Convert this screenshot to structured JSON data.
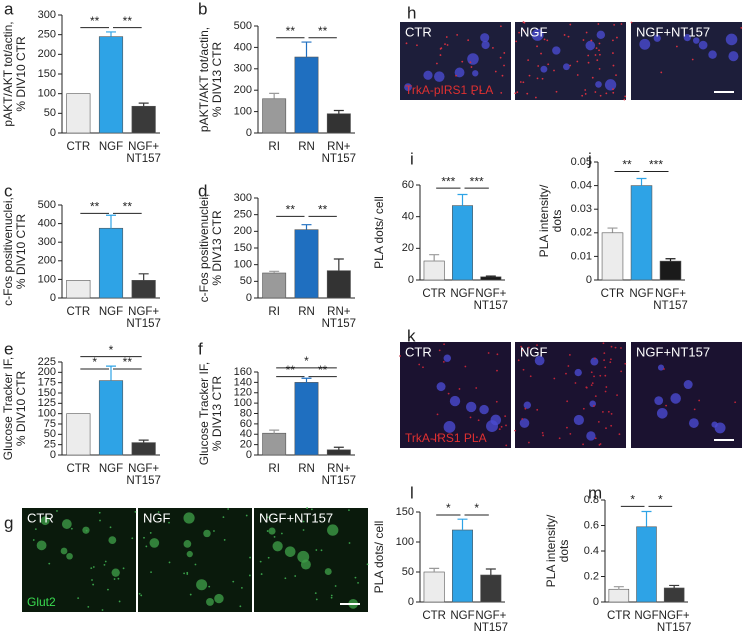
{
  "chart_data": [
    {
      "type": "bar",
      "letter": "a",
      "ylabel": "pAKT/AKT tot/actin,\n% DIV10 CTR",
      "categories": [
        "CTR",
        "NGF",
        "NGF+\nNT157"
      ],
      "values": [
        100,
        245,
        68
      ],
      "errors": [
        null,
        12,
        8
      ],
      "colors": [
        "#ececec",
        "#2ea3e6",
        "#3a3a3a"
      ],
      "ylim": [
        0,
        300
      ],
      "yticks": [
        0,
        50,
        100,
        150,
        200,
        250,
        300
      ],
      "annotations": [
        {
          "from": 0,
          "to": 1,
          "y": 268,
          "label": "**"
        },
        {
          "from": 1,
          "to": 2,
          "y": 268,
          "label": "**"
        }
      ]
    },
    {
      "type": "bar",
      "letter": "b",
      "ylabel": "pAKT/AKT tot/actin,\n% DIV13 CTR",
      "categories": [
        "RI",
        "RN",
        "RN+\nNT157"
      ],
      "values": [
        160,
        355,
        90
      ],
      "errors": [
        25,
        70,
        15
      ],
      "colors": [
        "#9a9a9a",
        "#1f6fc0",
        "#333333"
      ],
      "ylim": [
        0,
        500
      ],
      "yticks": [
        0,
        100,
        200,
        300,
        400,
        500
      ],
      "annotations": [
        {
          "from": 0,
          "to": 1,
          "y": 445,
          "label": "**"
        },
        {
          "from": 1,
          "to": 2,
          "y": 445,
          "label": "**"
        }
      ]
    },
    {
      "type": "bar",
      "letter": "c",
      "ylabel": "c-Fos positivenuclei,\n% DIV10 CTR",
      "categories": [
        "CTR",
        "NGF",
        "NGF+\nNT157"
      ],
      "values": [
        95,
        375,
        95
      ],
      "errors": [
        null,
        70,
        35
      ],
      "colors": [
        "#ececec",
        "#2ea3e6",
        "#3a3a3a"
      ],
      "ylim": [
        0,
        500
      ],
      "yticks": [
        0,
        100,
        200,
        300,
        400,
        500
      ],
      "annotations": [
        {
          "from": 0,
          "to": 1,
          "y": 455,
          "label": "**"
        },
        {
          "from": 1,
          "to": 2,
          "y": 455,
          "label": "**"
        }
      ]
    },
    {
      "type": "bar",
      "letter": "d",
      "ylabel": "c-Fos positivenuclei,\n% DIV13 CTR",
      "categories": [
        "RI",
        "RN",
        "RN+\nNT157"
      ],
      "values": [
        75,
        205,
        82
      ],
      "errors": [
        5,
        15,
        35
      ],
      "colors": [
        "#9a9a9a",
        "#1f6fc0",
        "#333333"
      ],
      "ylim": [
        0,
        300
      ],
      "yticks": [
        0,
        50,
        100,
        150,
        200,
        250,
        300
      ],
      "annotations": [
        {
          "from": 0,
          "to": 1,
          "y": 245,
          "label": "**"
        },
        {
          "from": 1,
          "to": 2,
          "y": 245,
          "label": "**"
        }
      ]
    },
    {
      "type": "bar",
      "letter": "e",
      "ylabel": "Glucose Tracker IF,\n% DIV10 CTR",
      "categories": [
        "CTR",
        "NGF",
        "NGF+\nNT157"
      ],
      "values": [
        100,
        180,
        30
      ],
      "errors": [
        null,
        35,
        6
      ],
      "colors": [
        "#ececec",
        "#2ea3e6",
        "#3a3a3a"
      ],
      "ylim": [
        0,
        225
      ],
      "yticks": [
        0,
        25,
        50,
        75,
        100,
        125,
        150,
        175,
        200,
        225
      ],
      "annotations": [
        {
          "from": 0,
          "to": 1,
          "y": 208,
          "label": "*"
        },
        {
          "from": 1,
          "to": 2,
          "y": 208,
          "label": "**"
        },
        {
          "from": 0,
          "to": 2,
          "y": 238,
          "label": "*"
        }
      ]
    },
    {
      "type": "bar",
      "letter": "f",
      "ylabel": "Glucose Tracker IF,\n% DIV13 CTR",
      "categories": [
        "RI",
        "RN",
        "RN+\nNT157"
      ],
      "values": [
        42,
        140,
        10
      ],
      "errors": [
        6,
        8,
        5
      ],
      "colors": [
        "#9a9a9a",
        "#1f6fc0",
        "#333333"
      ],
      "ylim": [
        0,
        160
      ],
      "yticks": [
        0,
        20,
        40,
        60,
        80,
        100,
        120,
        140,
        160
      ],
      "annotations": [
        {
          "from": 0,
          "to": 1,
          "y": 151,
          "label": "**"
        },
        {
          "from": 1,
          "to": 2,
          "y": 151,
          "label": "**"
        },
        {
          "from": 0,
          "to": 2,
          "y": 168,
          "label": "*"
        }
      ]
    },
    {
      "type": "bar",
      "letter": "i",
      "ylabel": "PLA dots/ cell",
      "categories": [
        "CTR",
        "NGF",
        "NGF+\nNT157"
      ],
      "values": [
        12,
        47,
        2
      ],
      "errors": [
        4,
        7,
        0.5
      ],
      "colors": [
        "#ececec",
        "#2ea3e6",
        "#1a1a1a"
      ],
      "ylim": [
        0,
        60
      ],
      "yticks": [
        0,
        20,
        40,
        60
      ],
      "annotations": [
        {
          "from": 0,
          "to": 1,
          "y": 58,
          "label": "***"
        },
        {
          "from": 1,
          "to": 2,
          "y": 58,
          "label": "***"
        }
      ]
    },
    {
      "type": "bar",
      "letter": "j",
      "ylabel": "PLA intensity/\ndots",
      "categories": [
        "CTR",
        "NGF",
        "NGF+\nNT157"
      ],
      "values": [
        0.02,
        0.04,
        0.008
      ],
      "errors": [
        0.002,
        0.003,
        0.001
      ],
      "colors": [
        "#ececec",
        "#2ea3e6",
        "#1a1a1a"
      ],
      "ylim": [
        0,
        0.05
      ],
      "yticks": [
        0,
        0.01,
        0.02,
        0.03,
        0.04,
        0.05
      ],
      "annotations": [
        {
          "from": 0,
          "to": 1,
          "y": 0.046,
          "label": "**"
        },
        {
          "from": 1,
          "to": 2,
          "y": 0.046,
          "label": "***"
        }
      ]
    },
    {
      "type": "bar",
      "letter": "l",
      "ylabel": "PLA dots/ cell",
      "categories": [
        "CTR",
        "NGF",
        "NGF+\nNT157"
      ],
      "values": [
        50,
        120,
        45
      ],
      "errors": [
        6,
        18,
        10
      ],
      "colors": [
        "#ececec",
        "#2ea3e6",
        "#3a3a3a"
      ],
      "ylim": [
        0,
        150
      ],
      "yticks": [
        0,
        50,
        100,
        150
      ],
      "annotations": [
        {
          "from": 0,
          "to": 1,
          "y": 145,
          "label": "*"
        },
        {
          "from": 1,
          "to": 2,
          "y": 145,
          "label": "*"
        }
      ]
    },
    {
      "type": "bar",
      "letter": "m",
      "ylabel": "PLA intensity/\ndots",
      "categories": [
        "CTR",
        "NGF",
        "NGF+\nNT157"
      ],
      "values": [
        0.1,
        0.59,
        0.11
      ],
      "errors": [
        0.02,
        0.12,
        0.02
      ],
      "colors": [
        "#ececec",
        "#2ea3e6",
        "#3a3a3a"
      ],
      "ylim": [
        0,
        0.8
      ],
      "yticks": [
        0,
        0.2,
        0.4,
        0.6,
        0.8
      ],
      "annotations": [
        {
          "from": 0,
          "to": 1,
          "y": 0.75,
          "label": "*"
        },
        {
          "from": 1,
          "to": 2,
          "y": 0.75,
          "label": "*"
        }
      ]
    }
  ],
  "image_panels": [
    {
      "letter": "h",
      "labels": [
        "CTR",
        "NGF",
        "NGF+NT157"
      ],
      "caption": "TrkA-pIRS1 PLA"
    },
    {
      "letter": "k",
      "labels": [
        "CTR",
        "NGF",
        "NGF+NT157"
      ],
      "caption": "TrkA-IRS1 PLA"
    },
    {
      "letter": "g",
      "labels": [
        "CTR",
        "NGF",
        "NGF+NT157"
      ],
      "caption": "Glut2"
    }
  ]
}
